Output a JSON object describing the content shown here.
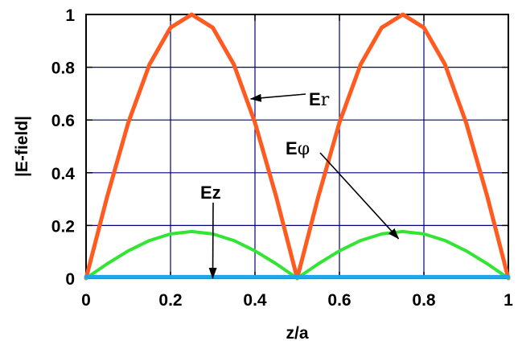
{
  "chart_data": {
    "type": "line",
    "title": "",
    "xlabel": "z/a",
    "ylabel": "|E-field|",
    "xlim": [
      0,
      1
    ],
    "ylim": [
      0,
      1
    ],
    "xticks": [
      "0",
      "0.2",
      "0.4",
      "0.6",
      "0.8",
      "1"
    ],
    "yticks": [
      "0",
      "0.2",
      "0.4",
      "0.6",
      "0.8",
      "1"
    ],
    "grid": true,
    "x": [
      0,
      0.05,
      0.1,
      0.15,
      0.2,
      0.25,
      0.3,
      0.35,
      0.4,
      0.45,
      0.5,
      0.55,
      0.6,
      0.65,
      0.7,
      0.75,
      0.8,
      0.85,
      0.9,
      0.95,
      1.0
    ],
    "series": [
      {
        "name": "Er",
        "color": "#ff5a1f",
        "values": [
          0.0,
          0.31,
          0.59,
          0.81,
          0.95,
          1.0,
          0.95,
          0.81,
          0.59,
          0.31,
          0.0,
          0.31,
          0.59,
          0.81,
          0.95,
          1.0,
          0.95,
          0.81,
          0.59,
          0.31,
          0.0
        ]
      },
      {
        "name": "Eφ",
        "color": "#33e533",
        "values": [
          0.0,
          0.055,
          0.104,
          0.143,
          0.168,
          0.177,
          0.168,
          0.143,
          0.104,
          0.055,
          0.0,
          0.055,
          0.104,
          0.143,
          0.168,
          0.177,
          0.168,
          0.143,
          0.104,
          0.055,
          0.0
        ]
      },
      {
        "name": "Ez",
        "color": "#1fa6e8",
        "values": [
          0.005,
          0.005,
          0.005,
          0.005,
          0.005,
          0.005,
          0.005,
          0.005,
          0.005,
          0.005,
          0.005,
          0.005,
          0.005,
          0.005,
          0.005,
          0.005,
          0.005,
          0.005,
          0.005,
          0.005,
          0.005
        ]
      }
    ],
    "annotations": [
      {
        "label": "E",
        "subscript": "r",
        "points_to": [
          0.39,
          0.68
        ]
      },
      {
        "label": "E",
        "subscript": "φ",
        "points_to": [
          0.74,
          0.15
        ]
      },
      {
        "label": "Ez",
        "subscript": "",
        "points_to": [
          0.3,
          0.0
        ]
      }
    ],
    "colors": {
      "grid": "#000080",
      "axes": "#000000"
    }
  }
}
